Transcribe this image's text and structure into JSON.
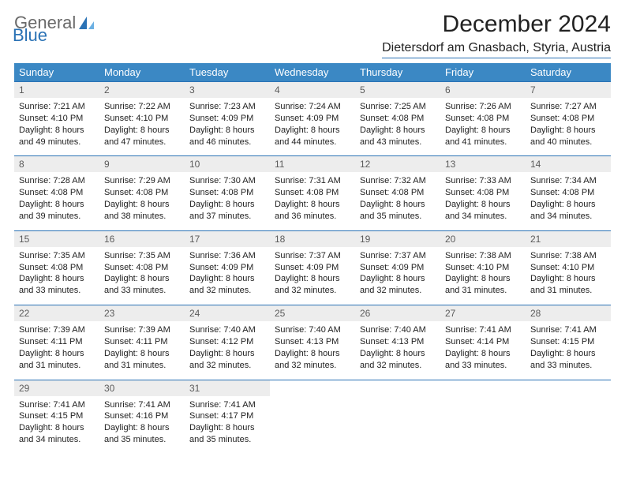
{
  "logo": {
    "word1": "General",
    "word2": "Blue"
  },
  "title": "December 2024",
  "subtitle": "Dietersdorf am Gnasbach, Styria, Austria",
  "colors": {
    "header_bg": "#3b88c4",
    "header_text": "#ffffff",
    "rule": "#2a72b5",
    "daynum_bg": "#ededed",
    "daynum_text": "#5b5b5b",
    "body_text": "#222222",
    "logo_gray": "#6a6a6a",
    "logo_blue": "#2a72b5",
    "page_bg": "#ffffff"
  },
  "typography": {
    "title_fontsize": 30,
    "subtitle_fontsize": 16,
    "dayhdr_fontsize": 13,
    "daynum_fontsize": 12,
    "body_fontsize": 11
  },
  "weekdays": [
    "Sunday",
    "Monday",
    "Tuesday",
    "Wednesday",
    "Thursday",
    "Friday",
    "Saturday"
  ],
  "weeks": [
    [
      {
        "n": "1",
        "sunrise": "7:21 AM",
        "sunset": "4:10 PM",
        "daylight": "8 hours and 49 minutes."
      },
      {
        "n": "2",
        "sunrise": "7:22 AM",
        "sunset": "4:10 PM",
        "daylight": "8 hours and 47 minutes."
      },
      {
        "n": "3",
        "sunrise": "7:23 AM",
        "sunset": "4:09 PM",
        "daylight": "8 hours and 46 minutes."
      },
      {
        "n": "4",
        "sunrise": "7:24 AM",
        "sunset": "4:09 PM",
        "daylight": "8 hours and 44 minutes."
      },
      {
        "n": "5",
        "sunrise": "7:25 AM",
        "sunset": "4:08 PM",
        "daylight": "8 hours and 43 minutes."
      },
      {
        "n": "6",
        "sunrise": "7:26 AM",
        "sunset": "4:08 PM",
        "daylight": "8 hours and 41 minutes."
      },
      {
        "n": "7",
        "sunrise": "7:27 AM",
        "sunset": "4:08 PM",
        "daylight": "8 hours and 40 minutes."
      }
    ],
    [
      {
        "n": "8",
        "sunrise": "7:28 AM",
        "sunset": "4:08 PM",
        "daylight": "8 hours and 39 minutes."
      },
      {
        "n": "9",
        "sunrise": "7:29 AM",
        "sunset": "4:08 PM",
        "daylight": "8 hours and 38 minutes."
      },
      {
        "n": "10",
        "sunrise": "7:30 AM",
        "sunset": "4:08 PM",
        "daylight": "8 hours and 37 minutes."
      },
      {
        "n": "11",
        "sunrise": "7:31 AM",
        "sunset": "4:08 PM",
        "daylight": "8 hours and 36 minutes."
      },
      {
        "n": "12",
        "sunrise": "7:32 AM",
        "sunset": "4:08 PM",
        "daylight": "8 hours and 35 minutes."
      },
      {
        "n": "13",
        "sunrise": "7:33 AM",
        "sunset": "4:08 PM",
        "daylight": "8 hours and 34 minutes."
      },
      {
        "n": "14",
        "sunrise": "7:34 AM",
        "sunset": "4:08 PM",
        "daylight": "8 hours and 34 minutes."
      }
    ],
    [
      {
        "n": "15",
        "sunrise": "7:35 AM",
        "sunset": "4:08 PM",
        "daylight": "8 hours and 33 minutes."
      },
      {
        "n": "16",
        "sunrise": "7:35 AM",
        "sunset": "4:08 PM",
        "daylight": "8 hours and 33 minutes."
      },
      {
        "n": "17",
        "sunrise": "7:36 AM",
        "sunset": "4:09 PM",
        "daylight": "8 hours and 32 minutes."
      },
      {
        "n": "18",
        "sunrise": "7:37 AM",
        "sunset": "4:09 PM",
        "daylight": "8 hours and 32 minutes."
      },
      {
        "n": "19",
        "sunrise": "7:37 AM",
        "sunset": "4:09 PM",
        "daylight": "8 hours and 32 minutes."
      },
      {
        "n": "20",
        "sunrise": "7:38 AM",
        "sunset": "4:10 PM",
        "daylight": "8 hours and 31 minutes."
      },
      {
        "n": "21",
        "sunrise": "7:38 AM",
        "sunset": "4:10 PM",
        "daylight": "8 hours and 31 minutes."
      }
    ],
    [
      {
        "n": "22",
        "sunrise": "7:39 AM",
        "sunset": "4:11 PM",
        "daylight": "8 hours and 31 minutes."
      },
      {
        "n": "23",
        "sunrise": "7:39 AM",
        "sunset": "4:11 PM",
        "daylight": "8 hours and 31 minutes."
      },
      {
        "n": "24",
        "sunrise": "7:40 AM",
        "sunset": "4:12 PM",
        "daylight": "8 hours and 32 minutes."
      },
      {
        "n": "25",
        "sunrise": "7:40 AM",
        "sunset": "4:13 PM",
        "daylight": "8 hours and 32 minutes."
      },
      {
        "n": "26",
        "sunrise": "7:40 AM",
        "sunset": "4:13 PM",
        "daylight": "8 hours and 32 minutes."
      },
      {
        "n": "27",
        "sunrise": "7:41 AM",
        "sunset": "4:14 PM",
        "daylight": "8 hours and 33 minutes."
      },
      {
        "n": "28",
        "sunrise": "7:41 AM",
        "sunset": "4:15 PM",
        "daylight": "8 hours and 33 minutes."
      }
    ],
    [
      {
        "n": "29",
        "sunrise": "7:41 AM",
        "sunset": "4:15 PM",
        "daylight": "8 hours and 34 minutes."
      },
      {
        "n": "30",
        "sunrise": "7:41 AM",
        "sunset": "4:16 PM",
        "daylight": "8 hours and 35 minutes."
      },
      {
        "n": "31",
        "sunrise": "7:41 AM",
        "sunset": "4:17 PM",
        "daylight": "8 hours and 35 minutes."
      },
      null,
      null,
      null,
      null
    ]
  ],
  "labels": {
    "sunrise_prefix": "Sunrise: ",
    "sunset_prefix": "Sunset: ",
    "daylight_prefix": "Daylight: "
  }
}
